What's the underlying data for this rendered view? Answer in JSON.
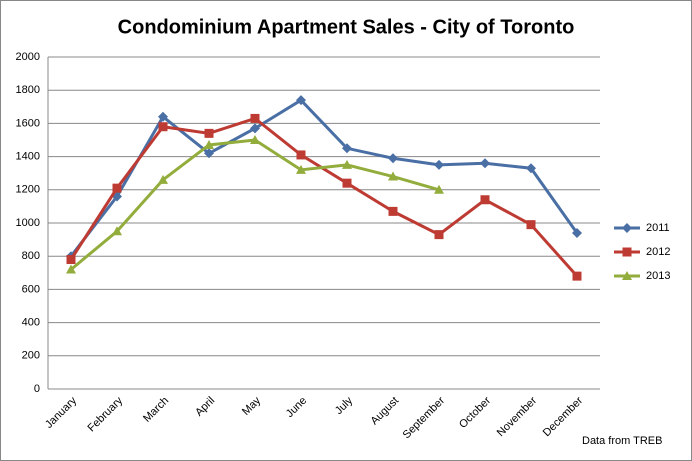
{
  "chart_data": {
    "type": "line",
    "title": "Condominium Apartment Sales - City of Toronto",
    "categories": [
      "January",
      "February",
      "March",
      "April",
      "May",
      "June",
      "July",
      "August",
      "September",
      "October",
      "November",
      "December"
    ],
    "series": [
      {
        "name": "2011",
        "color": "#4a6fa5",
        "marker": "diamond",
        "values": [
          800,
          1160,
          1640,
          1420,
          1570,
          1740,
          1450,
          1390,
          1350,
          1360,
          1330,
          940
        ]
      },
      {
        "name": "2012",
        "color": "#be3b33",
        "marker": "square",
        "values": [
          780,
          1210,
          1580,
          1540,
          1630,
          1410,
          1240,
          1070,
          930,
          1140,
          990,
          680
        ]
      },
      {
        "name": "2013",
        "color": "#93ad3c",
        "marker": "triangle",
        "values": [
          720,
          950,
          1260,
          1470,
          1500,
          1320,
          1350,
          1280,
          1200,
          null,
          null,
          null
        ]
      }
    ],
    "ylim": [
      0,
      2000
    ],
    "yticks": [
      0,
      200,
      400,
      600,
      800,
      1000,
      1200,
      1400,
      1600,
      1800,
      2000
    ],
    "grid": true,
    "legend": "right",
    "annotation": "Data from TREB"
  }
}
